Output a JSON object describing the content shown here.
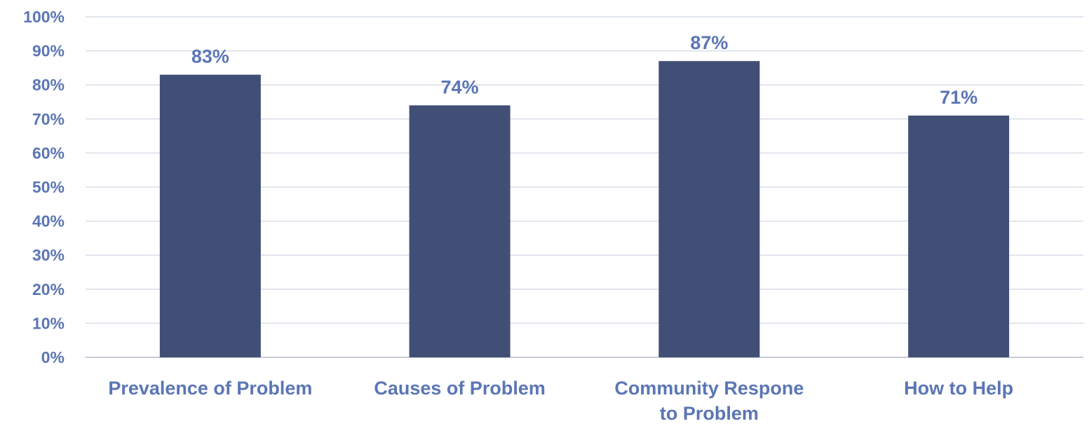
{
  "chart_data": {
    "type": "bar",
    "title": "",
    "xlabel": "",
    "ylabel": "",
    "categories": [
      [
        "Prevalence of Problem"
      ],
      [
        "Causes of Problem"
      ],
      [
        "Community Respone",
        "to Problem"
      ],
      [
        "How to Help"
      ]
    ],
    "values": [
      83,
      74,
      87,
      71
    ],
    "data_labels": [
      "83%",
      "74%",
      "87%",
      "71%"
    ],
    "ylim": [
      0,
      100
    ],
    "yticks": [
      0,
      10,
      20,
      30,
      40,
      50,
      60,
      70,
      80,
      90,
      100
    ],
    "ytick_labels": [
      "0%",
      "10%",
      "20%",
      "30%",
      "40%",
      "50%",
      "60%",
      "70%",
      "80%",
      "90%",
      "100%"
    ],
    "grid": true,
    "legend": "none",
    "colors": {
      "bar": "#414f76",
      "text": "#5b76b5",
      "grid": "#d9dde8",
      "axis": "#c8ccd8"
    }
  }
}
